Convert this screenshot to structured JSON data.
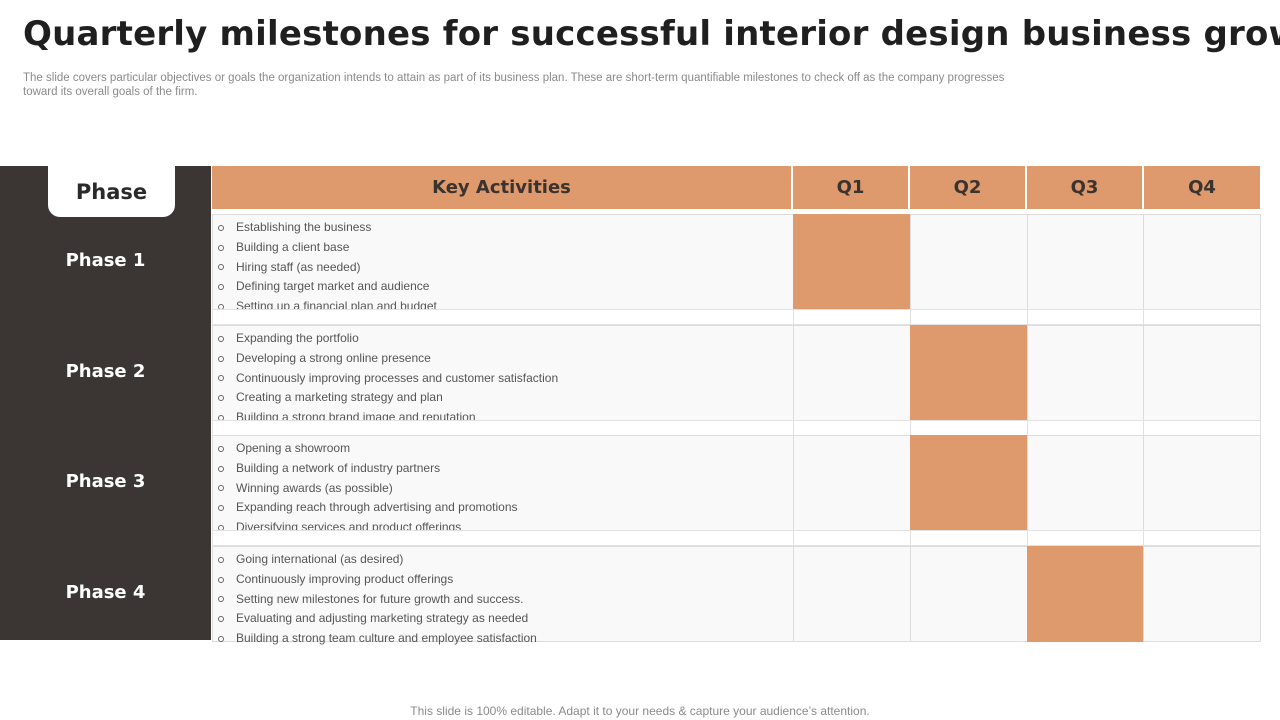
{
  "slide": {
    "title": "Quarterly milestones for successful interior design business growth",
    "subtitle": "The slide covers particular objectives or goals the organization intends to attain as part of its business plan. These are short-term quantifiable milestones to check off as the company progresses toward its overall goals of the firm.",
    "footer": "This slide is 100% editable. Adapt it to your needs & capture your audience’s attention."
  },
  "table": {
    "phase_header": "Phase",
    "activities_header": "Key Activities",
    "quarters": [
      "Q1",
      "Q2",
      "Q3",
      "Q4"
    ],
    "accent_color": "#de9a6c",
    "sidebar_color": "#3b3533",
    "phases": [
      {
        "label": "Phase 1",
        "active_quarter": "Q1",
        "activities": [
          "Establishing the business",
          "Building a client base",
          "Hiring staff (as needed)",
          "Defining target market and audience",
          "Setting up a financial plan and budget"
        ]
      },
      {
        "label": "Phase 2",
        "active_quarter": "Q2",
        "activities": [
          "Expanding the portfolio",
          "Developing a strong online presence",
          "Continuously improving processes and customer satisfaction",
          "Creating a marketing strategy and plan",
          "Building a strong brand image and reputation"
        ]
      },
      {
        "label": "Phase 3",
        "active_quarter": "Q2",
        "activities": [
          "Opening a showroom",
          "Building a network of industry partners",
          "Winning awards (as possible)",
          "Expanding reach through advertising and promotions",
          "Diversifying services and product offerings"
        ]
      },
      {
        "label": "Phase 4",
        "active_quarter": "Q3",
        "activities": [
          "Going international (as desired)",
          "Continuously improving product offerings",
          "Setting new milestones for future growth and success.",
          "Evaluating and adjusting marketing strategy as needed",
          "Building a strong team culture and employee satisfaction"
        ]
      }
    ]
  }
}
